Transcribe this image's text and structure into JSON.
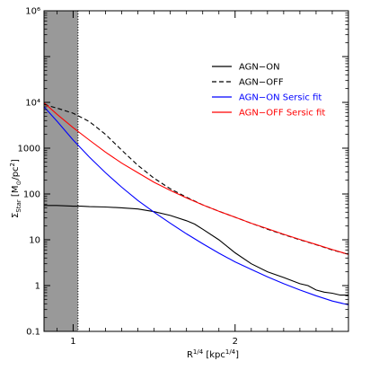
{
  "chart_data": {
    "type": "line",
    "title": "",
    "xlabel": "R^{1/4} [kpc^{1/4}]",
    "ylabel": "Σ_Star [M_⊙/pc²]",
    "xlim": [
      0.82,
      2.7
    ],
    "ylim": [
      0.1,
      1000000
    ],
    "y_scale": "log",
    "grid": false,
    "legend_position": "top-right",
    "x_ticks": [
      1,
      2
    ],
    "x_tick_labels": [
      "1",
      "2"
    ],
    "y_ticks": [
      0.1,
      1,
      10,
      100,
      1000,
      10000,
      1000000
    ],
    "y_tick_labels": [
      "0.1",
      "1",
      "10",
      "100",
      "1000",
      "10⁴",
      "10⁶"
    ],
    "shaded_region": {
      "x_from": 0.82,
      "x_to": 1.03,
      "color": "#999999"
    },
    "series": [
      {
        "name": "AGN−ON",
        "color": "#000000",
        "dash": "solid",
        "x": [
          0.82,
          0.9,
          1.0,
          1.05,
          1.1,
          1.2,
          1.3,
          1.4,
          1.5,
          1.6,
          1.7,
          1.75,
          1.8,
          1.9,
          2.0,
          2.1,
          2.2,
          2.3,
          2.4,
          2.45,
          2.5,
          2.55,
          2.6,
          2.65,
          2.7
        ],
        "y": [
          56,
          56,
          54,
          54,
          53,
          52,
          50,
          47,
          41,
          34,
          26,
          22,
          17,
          10,
          5.2,
          3.0,
          2.0,
          1.5,
          1.1,
          1.0,
          0.8,
          0.72,
          0.68,
          0.62,
          0.62
        ]
      },
      {
        "name": "AGN−OFF",
        "color": "#000000",
        "dash": "dashed",
        "x": [
          0.82,
          0.9,
          1.0,
          1.1,
          1.2,
          1.3,
          1.4,
          1.5,
          1.6,
          1.7,
          1.8,
          1.9,
          2.0,
          2.1,
          2.2,
          2.3,
          2.4,
          2.5,
          2.6,
          2.7
        ],
        "y": [
          9000,
          7500,
          5800,
          3800,
          2000,
          900,
          420,
          220,
          130,
          85,
          58,
          42,
          31,
          23,
          17,
          13,
          10,
          7.8,
          6.0,
          4.8
        ]
      },
      {
        "name": "AGN−ON Sersic fit",
        "color": "#0000ff",
        "dash": "solid",
        "x": [
          0.82,
          0.9,
          1.0,
          1.1,
          1.2,
          1.3,
          1.4,
          1.5,
          1.6,
          1.7,
          1.8,
          1.9,
          2.0,
          2.1,
          2.2,
          2.3,
          2.4,
          2.5,
          2.6,
          2.7
        ],
        "y": [
          8000,
          3900,
          1500,
          640,
          290,
          140,
          72,
          40,
          23,
          13.5,
          8.2,
          5.1,
          3.3,
          2.25,
          1.55,
          1.1,
          0.8,
          0.6,
          0.46,
          0.38
        ]
      },
      {
        "name": "AGN−OFF Sersic fit",
        "color": "#ff0000",
        "dash": "solid",
        "x": [
          0.82,
          0.9,
          1.0,
          1.1,
          1.2,
          1.3,
          1.4,
          1.5,
          1.6,
          1.7,
          1.8,
          1.9,
          2.0,
          2.1,
          2.2,
          2.3,
          2.4,
          2.5,
          2.6,
          2.7
        ],
        "y": [
          9800,
          5500,
          2800,
          1500,
          820,
          470,
          290,
          180,
          120,
          82,
          58,
          42,
          31,
          23,
          17.5,
          13.2,
          10.2,
          7.9,
          6.1,
          4.8
        ]
      }
    ]
  }
}
